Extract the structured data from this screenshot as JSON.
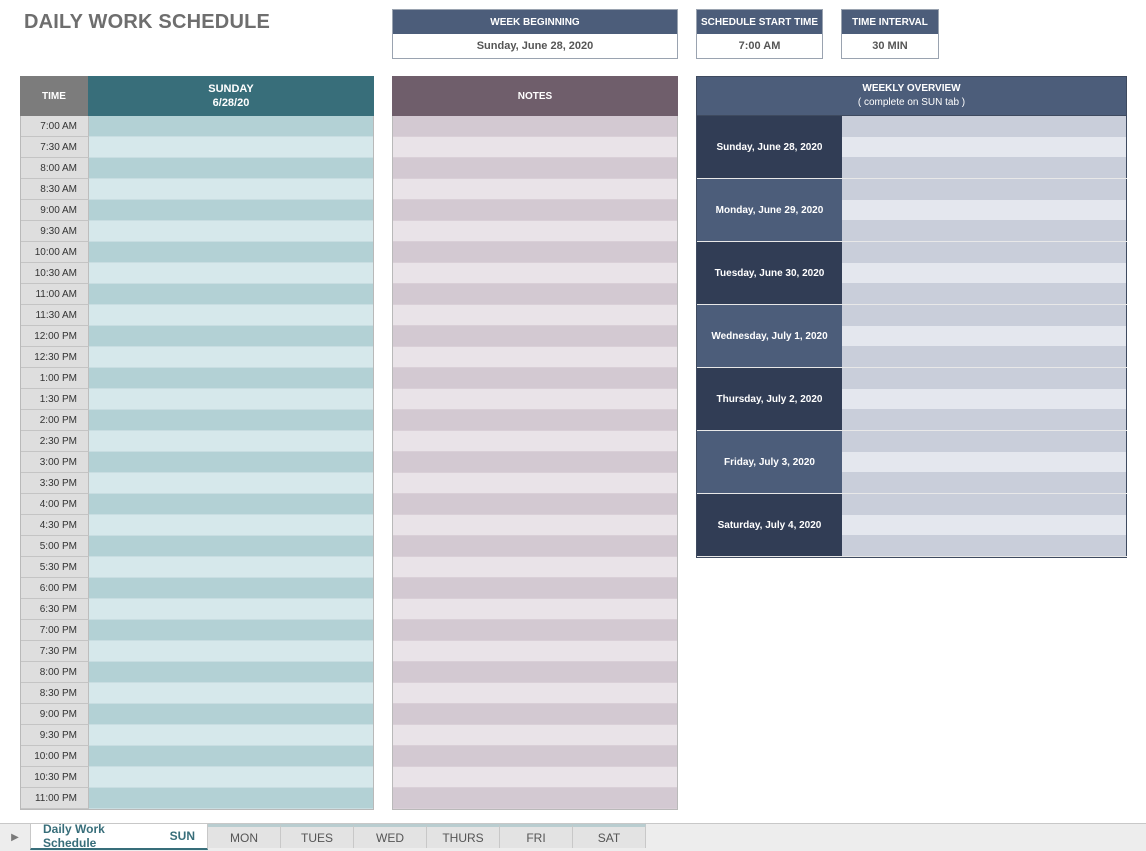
{
  "title": "DAILY WORK SCHEDULE",
  "week_beginning": {
    "label": "WEEK BEGINNING",
    "value": "Sunday, June 28, 2020"
  },
  "start_time": {
    "label": "SCHEDULE START TIME",
    "value": "7:00 AM"
  },
  "time_interval": {
    "label": "TIME INTERVAL",
    "value": "30 MIN"
  },
  "schedule": {
    "time_header": "TIME",
    "day_name": "SUNDAY",
    "day_date": "6/28/20",
    "times": [
      "7:00 AM",
      "7:30 AM",
      "8:00 AM",
      "8:30 AM",
      "9:00 AM",
      "9:30 AM",
      "10:00 AM",
      "10:30 AM",
      "11:00 AM",
      "11:30 AM",
      "12:00 PM",
      "12:30 PM",
      "1:00 PM",
      "1:30 PM",
      "2:00 PM",
      "2:30 PM",
      "3:00 PM",
      "3:30 PM",
      "4:00 PM",
      "4:30 PM",
      "5:00 PM",
      "5:30 PM",
      "6:00 PM",
      "6:30 PM",
      "7:00 PM",
      "7:30 PM",
      "8:00 PM",
      "8:30 PM",
      "9:00 PM",
      "9:30 PM",
      "10:00 PM",
      "10:30 PM",
      "11:00 PM"
    ]
  },
  "notes": {
    "header": "NOTES"
  },
  "overview": {
    "title": "WEEKLY OVERVIEW",
    "subtitle": "( complete on SUN tab )",
    "days": [
      "Sunday, June 28, 2020",
      "Monday, June 29, 2020",
      "Tuesday, June 30, 2020",
      "Wednesday, July 1, 2020",
      "Thursday, July 2, 2020",
      "Friday, July 3, 2020",
      "Saturday, July 4, 2020"
    ]
  },
  "tabs": {
    "active_label": "Daily Work Schedule",
    "active_short": "SUN",
    "others": [
      "MON",
      "TUES",
      "WED",
      "THURS",
      "FRI",
      "SAT"
    ]
  },
  "colors": {
    "header_navy": "#4c5d7a",
    "header_teal": "#386e7a",
    "header_mauve": "#6f5e6b"
  }
}
